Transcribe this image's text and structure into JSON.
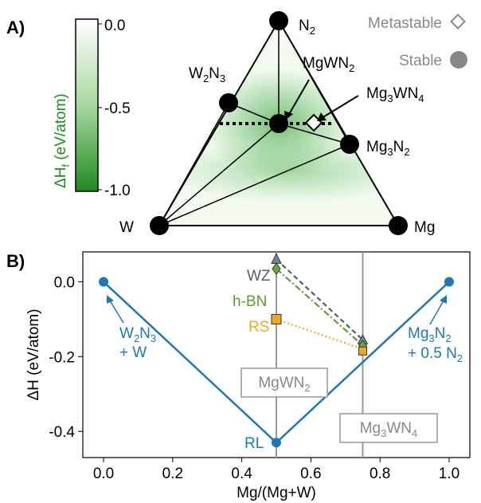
{
  "panel_a": {
    "label": "A)",
    "colorbar": {
      "label_main": "ΔH",
      "label_sub": "f",
      "label_unit": " (eV/atom)",
      "ticks": [
        "0.0",
        "-0.5",
        "-1.0"
      ],
      "colors": [
        "#ffffff",
        "#1f8a1f"
      ],
      "range": [
        -1.0,
        0.0
      ]
    },
    "vertices": {
      "N2": "N",
      "W": "W",
      "Mg": "Mg"
    },
    "phase_labels": {
      "W2N3": "W",
      "MgWN2": "MgWN",
      "Mg3WN4": "Mg",
      "Mg3N2": "Mg",
      "N2_sub": "2"
    },
    "legend": {
      "metastable": "Metastable",
      "stable": "Stable"
    },
    "colors": {
      "stable_marker": "#000000",
      "green": "#1f8a1f"
    }
  },
  "panel_b": {
    "label": "B)",
    "phase_lines": [
      {
        "x": 0.5,
        "label": "MgWN",
        "sub": "2"
      },
      {
        "x": 0.75,
        "label": "Mg",
        "sub": "3",
        "label2": "WN",
        "sub2": "4"
      }
    ],
    "structure_labels": {
      "WZ": "WZ",
      "hBN": "h-BN",
      "RS": "RS",
      "RL": "RL"
    },
    "endpoint_labels": {
      "left_line1": "W",
      "left_sub1": "2",
      "left_mid": "N",
      "left_sub2": "3",
      "left_line2": "+ W",
      "right_line1": "Mg",
      "right_sub1": "3",
      "right_mid": "N",
      "right_sub2": "2",
      "right_line2": "+ 0.5 N",
      "right_sub3": "2"
    },
    "colors": {
      "hull": "#1f77b4",
      "WZ": "#555b66",
      "hBN": "#5a9e2f",
      "RS": "#f5a623",
      "phase_line": "#999999"
    }
  },
  "chart_data": {
    "type": "line",
    "title": "",
    "xlabel": "Mg/(Mg+W)",
    "ylabel": "ΔH (eV/atom)",
    "xlim": [
      -0.06,
      1.06
    ],
    "ylim": [
      -0.47,
      0.08
    ],
    "xticks": [
      "0.0",
      "0.2",
      "0.4",
      "0.6",
      "0.8",
      "1.0"
    ],
    "yticks": [
      "0.0",
      "-0.2",
      "-0.4"
    ],
    "grid": false,
    "series": [
      {
        "key": "hull",
        "x": [
          0.0,
          0.5,
          1.0
        ],
        "y": [
          0.0,
          -0.43,
          0.0
        ]
      },
      {
        "key": "WZ",
        "x": [
          0.5,
          0.75
        ],
        "y": [
          0.06,
          -0.155
        ]
      },
      {
        "key": "hBN",
        "x": [
          0.5,
          0.75
        ],
        "y": [
          0.035,
          -0.17
        ]
      },
      {
        "key": "RS",
        "x": [
          0.5,
          0.75
        ],
        "y": [
          -0.1,
          -0.18
        ]
      }
    ],
    "mg3wn4_point": {
      "x": 0.75,
      "y": -0.185
    }
  }
}
